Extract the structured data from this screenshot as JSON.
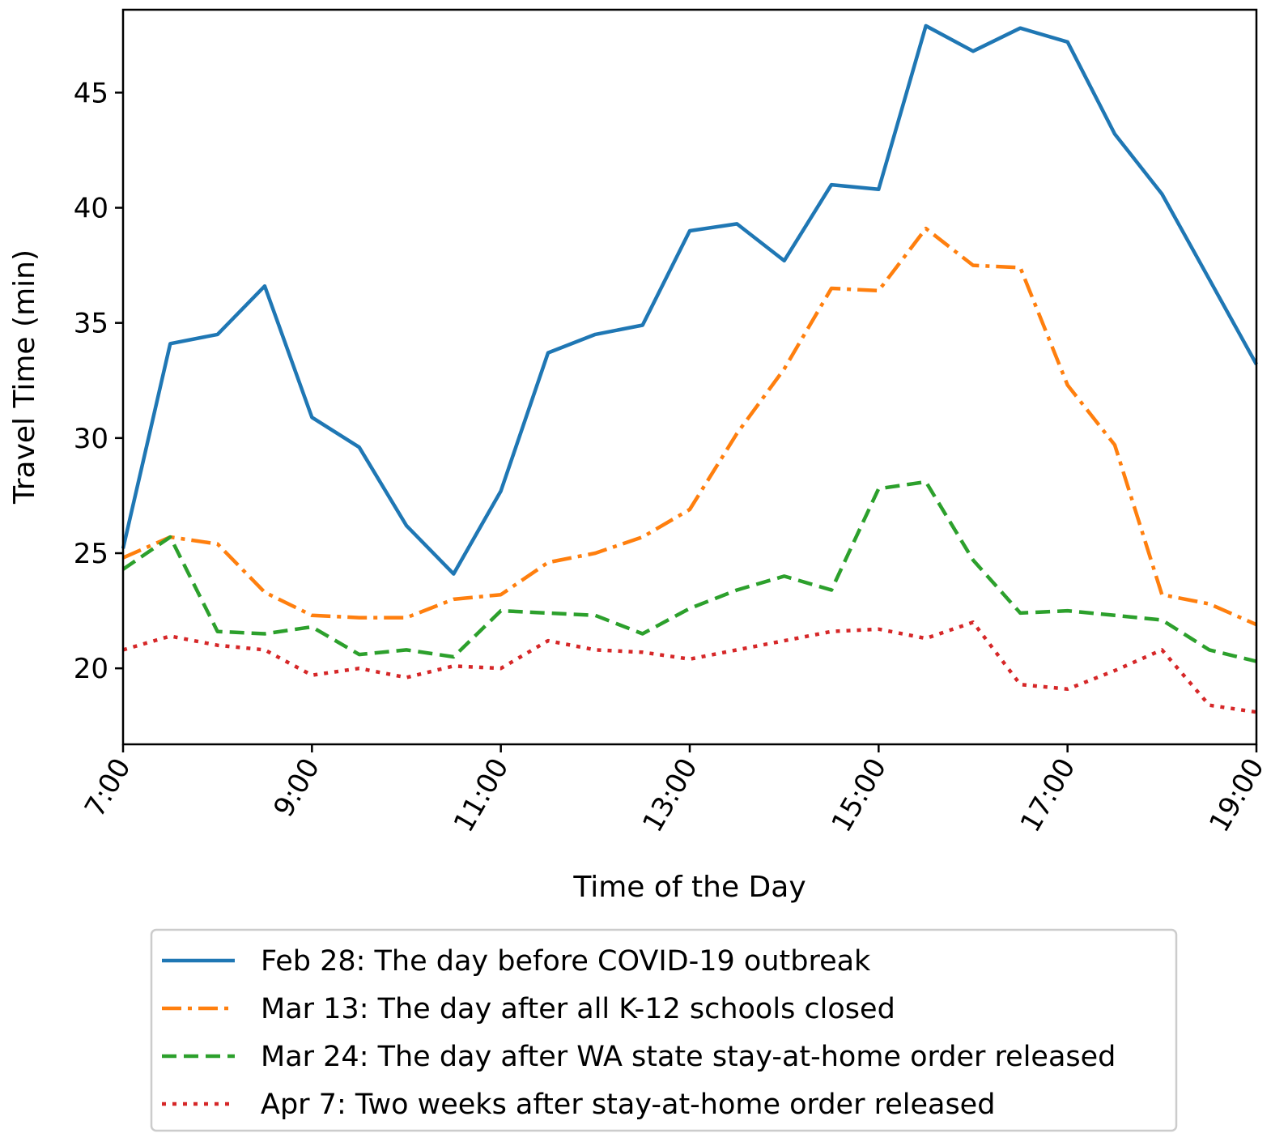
{
  "chart_data": {
    "type": "line",
    "title": "",
    "xlabel": "Time of the Day",
    "ylabel": "Travel Time (min)",
    "xlim": [
      7,
      19
    ],
    "ylim": [
      16.7,
      48.6
    ],
    "x": [
      7,
      7.5,
      8,
      8.5,
      9,
      9.5,
      10,
      10.5,
      11,
      11.5,
      12,
      12.5,
      13,
      13.5,
      14,
      14.5,
      15,
      15.5,
      16,
      16.5,
      17,
      17.5,
      18,
      18.5,
      19
    ],
    "xticks": [
      7,
      9,
      11,
      13,
      15,
      17,
      19
    ],
    "xtick_labels": [
      "7:00",
      "9:00",
      "11:00",
      "13:00",
      "15:00",
      "17:00",
      "19:00"
    ],
    "yticks": [
      20,
      25,
      30,
      35,
      40,
      45
    ],
    "ytick_labels": [
      "20",
      "25",
      "30",
      "35",
      "40",
      "45"
    ],
    "legend_position": "below",
    "series": [
      {
        "name": "Feb 28: The day before COVID-19 outbreak",
        "color": "#1f77b4",
        "style": "solid",
        "values": [
          25.2,
          34.1,
          34.5,
          36.6,
          30.9,
          29.6,
          26.2,
          24.1,
          27.7,
          33.7,
          34.5,
          34.9,
          39.0,
          39.3,
          37.7,
          41.0,
          40.8,
          47.9,
          46.8,
          47.8,
          47.2,
          43.2,
          40.6,
          36.9,
          33.2
        ]
      },
      {
        "name": "Mar 13: The day after all K-12 schools closed",
        "color": "#ff7f0e",
        "style": "dashdot",
        "values": [
          24.8,
          25.7,
          25.4,
          23.3,
          22.3,
          22.2,
          22.2,
          23.0,
          23.2,
          24.6,
          25.0,
          25.7,
          26.9,
          30.2,
          33.0,
          36.5,
          36.4,
          39.1,
          37.5,
          37.4,
          32.3,
          29.7,
          23.2,
          22.8,
          21.9
        ]
      },
      {
        "name": "Mar 24: The day after WA state stay-at-home order released",
        "color": "#2ca02c",
        "style": "dashed",
        "values": [
          24.3,
          25.7,
          21.6,
          21.5,
          21.8,
          20.6,
          20.8,
          20.5,
          22.5,
          22.4,
          22.3,
          21.5,
          22.6,
          23.4,
          24.0,
          23.4,
          27.8,
          28.1,
          24.7,
          22.4,
          22.5,
          22.3,
          22.1,
          20.8,
          20.3
        ]
      },
      {
        "name": "Apr 7: Two weeks after stay-at-home order released",
        "color": "#d62728",
        "style": "dotted",
        "values": [
          20.8,
          21.4,
          21.0,
          20.8,
          19.7,
          20.0,
          19.6,
          20.1,
          20.0,
          21.2,
          20.8,
          20.7,
          20.4,
          20.8,
          21.2,
          21.6,
          21.7,
          21.3,
          22.0,
          19.3,
          19.1,
          19.9,
          20.8,
          18.4,
          18.1
        ]
      }
    ]
  }
}
